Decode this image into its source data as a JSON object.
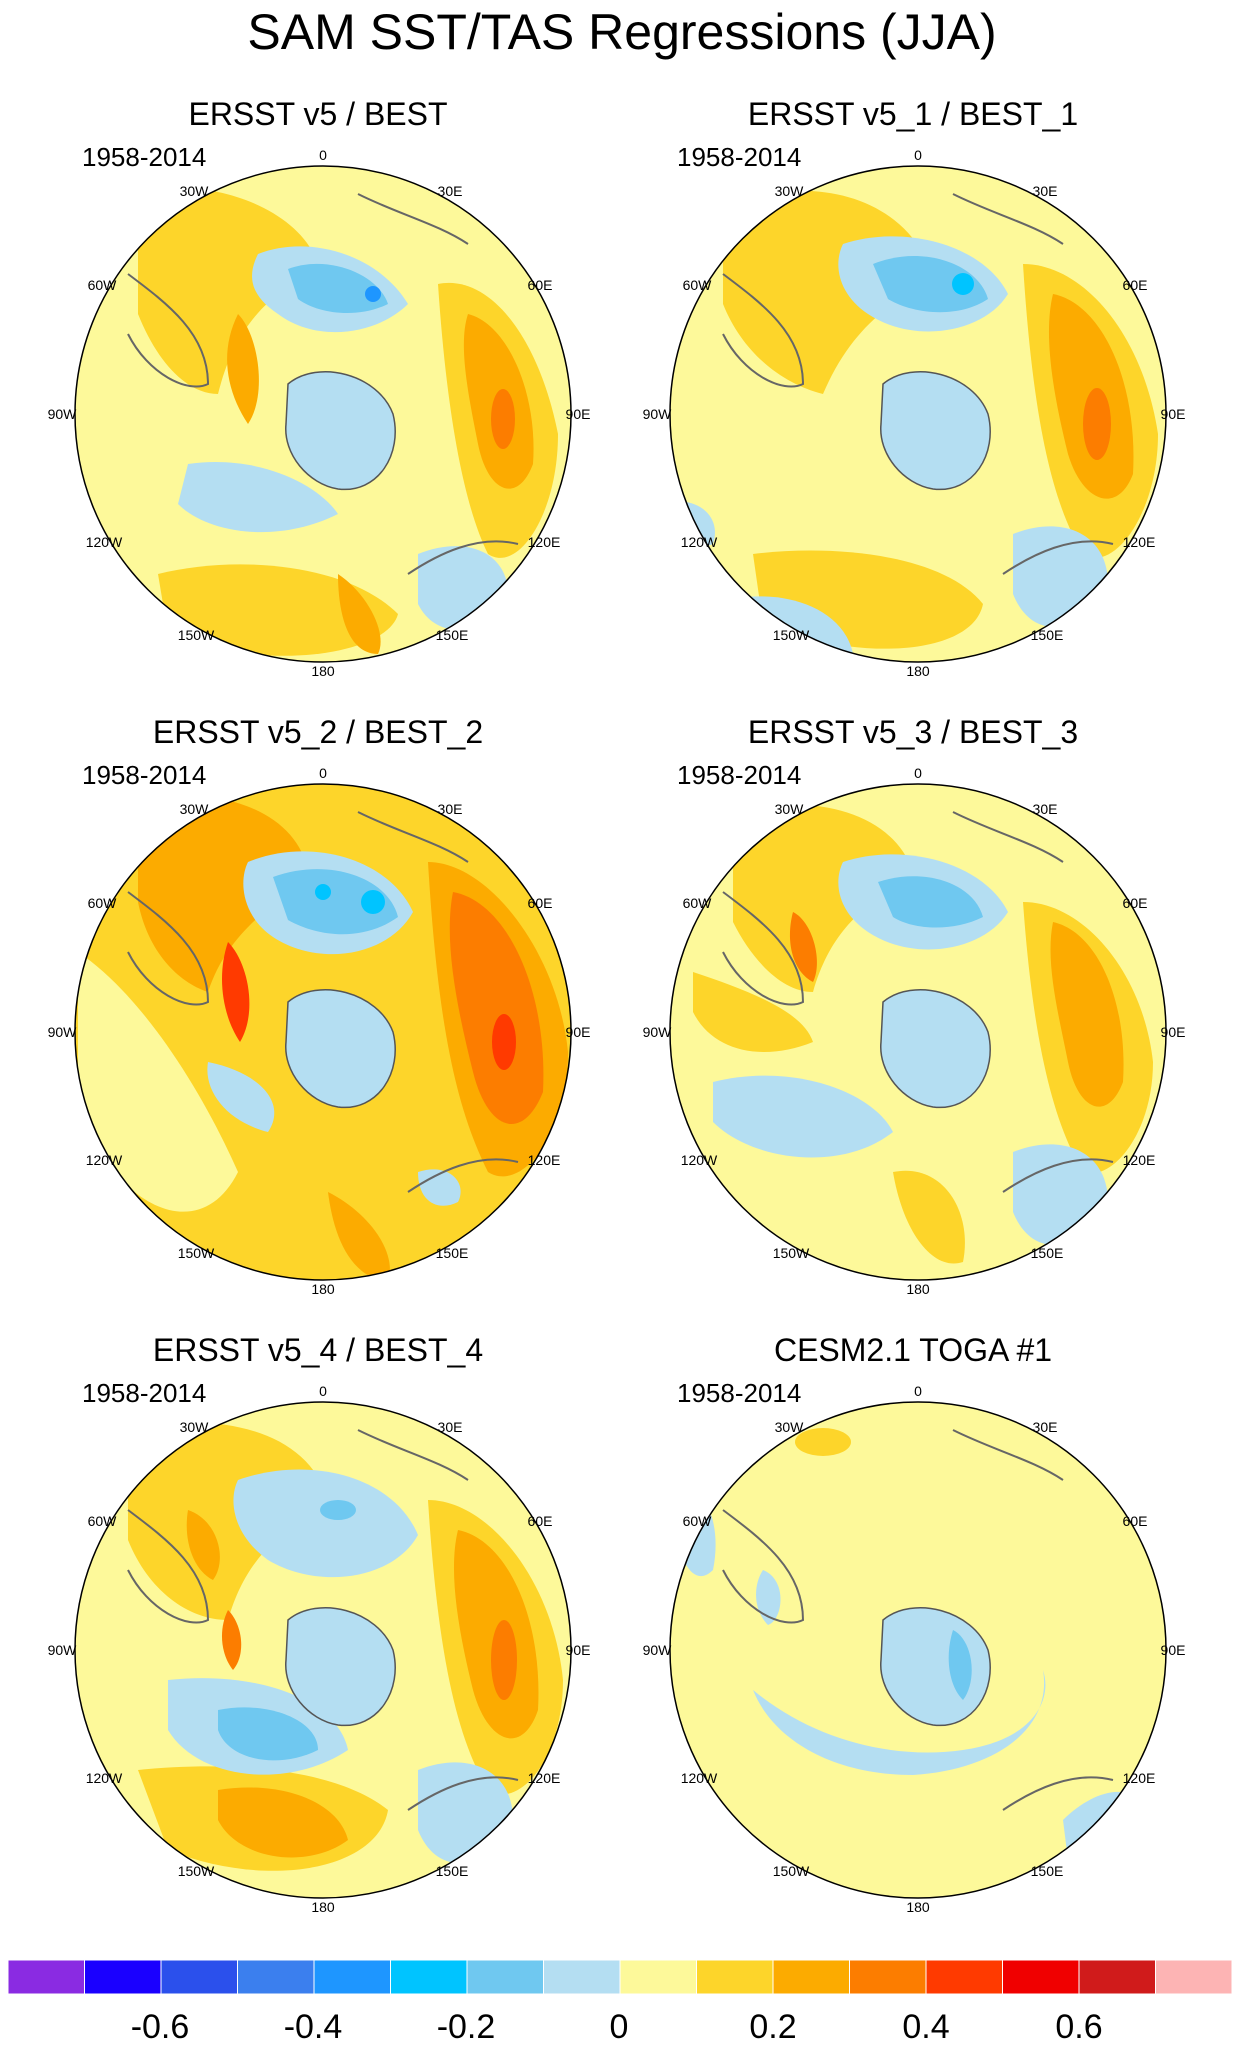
{
  "title": "SAM SST/TAS Regressions (JJA)",
  "panels": [
    {
      "title": "ERSST v5 / BEST",
      "period": "1958-2014"
    },
    {
      "title": "ERSST v5_1 / BEST_1",
      "period": "1958-2014"
    },
    {
      "title": "ERSST v5_2 / BEST_2",
      "period": "1958-2014"
    },
    {
      "title": "ERSST v5_3 / BEST_3",
      "period": "1958-2014"
    },
    {
      "title": "ERSST v5_4 / BEST_4",
      "period": "1958-2014"
    },
    {
      "title": "CESM2.1 TOGA #1",
      "period": "1958-2014"
    }
  ],
  "longitude_labels": [
    "0",
    "30E",
    "60E",
    "90E",
    "120E",
    "150E",
    "180",
    "150W",
    "120W",
    "90W",
    "60W",
    "30W"
  ],
  "colorbar": {
    "colors": [
      "#8a2be2",
      "#1a00ff",
      "#2b50ec",
      "#3b7fee",
      "#1e96ff",
      "#00c4ff",
      "#6fc8f0",
      "#b4def2",
      "#fdf99a",
      "#fdd52a",
      "#fcab00",
      "#fc7d00",
      "#ff3a00",
      "#f00000",
      "#d01b1b",
      "#fdb4b4"
    ],
    "tick_labels": [
      "-0.6",
      "-0.4",
      "-0.2",
      "0",
      "0.2",
      "0.4",
      "0.6"
    ]
  }
}
